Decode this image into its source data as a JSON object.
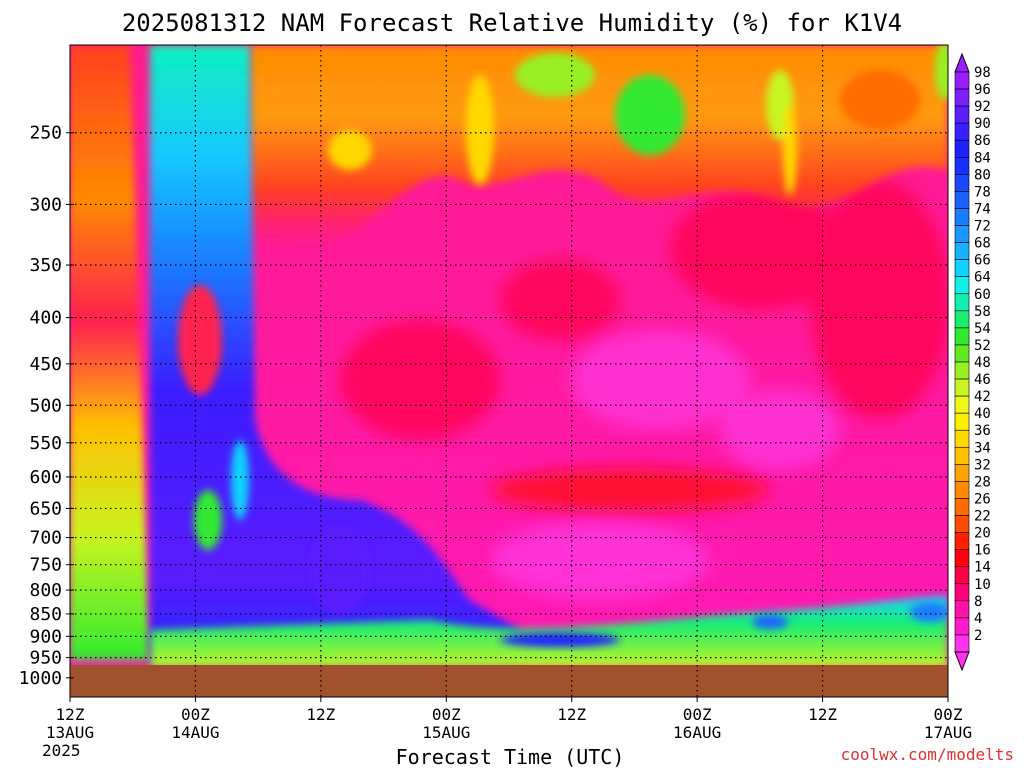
{
  "chart_data": {
    "type": "heatmap",
    "title": "2025081312 NAM Forecast Relative Humidity (%) for K1V4",
    "xlabel": "Forecast Time (UTC)",
    "ylabel": "",
    "x_ticks": [
      {
        "hours": 0,
        "l1": "12Z",
        "l2": "13AUG",
        "l3": "2025"
      },
      {
        "hours": 12,
        "l1": "00Z",
        "l2": "14AUG",
        "l3": ""
      },
      {
        "hours": 24,
        "l1": "12Z",
        "l2": "",
        "l3": ""
      },
      {
        "hours": 36,
        "l1": "00Z",
        "l2": "15AUG",
        "l3": ""
      },
      {
        "hours": 48,
        "l1": "12Z",
        "l2": "",
        "l3": ""
      },
      {
        "hours": 60,
        "l1": "00Z",
        "l2": "16AUG",
        "l3": ""
      },
      {
        "hours": 72,
        "l1": "12Z",
        "l2": "",
        "l3": ""
      },
      {
        "hours": 84,
        "l1": "00Z",
        "l2": "17AUG",
        "l3": ""
      }
    ],
    "x_range_hours": [
      0,
      84
    ],
    "y_ticks": [
      250,
      300,
      350,
      400,
      450,
      500,
      550,
      600,
      650,
      700,
      750,
      800,
      850,
      900,
      950,
      1000
    ],
    "y_range": [
      200,
      1050
    ],
    "y_scale": "log-pressure",
    "grid": true,
    "ground_level_hpa": 968,
    "colorbar": {
      "labels": [
        "98",
        "96",
        "92",
        "90",
        "86",
        "84",
        "80",
        "78",
        "74",
        "72",
        "68",
        "66",
        "64",
        "60",
        "58",
        "54",
        "52",
        "48",
        "46",
        "42",
        "40",
        "36",
        "34",
        "32",
        "28",
        "26",
        "22",
        "20",
        "16",
        "14",
        "10",
        "8",
        "4",
        "2"
      ],
      "colors": [
        "#9a1dff",
        "#7c1fff",
        "#5a1fff",
        "#3a1fff",
        "#2020ff",
        "#1830ff",
        "#1848ff",
        "#1a62ff",
        "#1a7cff",
        "#1a98ff",
        "#16b2ff",
        "#10d4ff",
        "#10f0e8",
        "#10f0b0",
        "#18ee70",
        "#30ea30",
        "#60ea20",
        "#98f020",
        "#c8f420",
        "#f0f818",
        "#fff000",
        "#ffd800",
        "#ffc000",
        "#ffa400",
        "#ff8a00",
        "#ff6c00",
        "#ff4c00",
        "#ff2000",
        "#ff0010",
        "#ff0048",
        "#ff0078",
        "#ff10a8",
        "#ff18cc",
        "#ff30ee"
      ]
    },
    "credit": "coolwx.com/modelts"
  }
}
